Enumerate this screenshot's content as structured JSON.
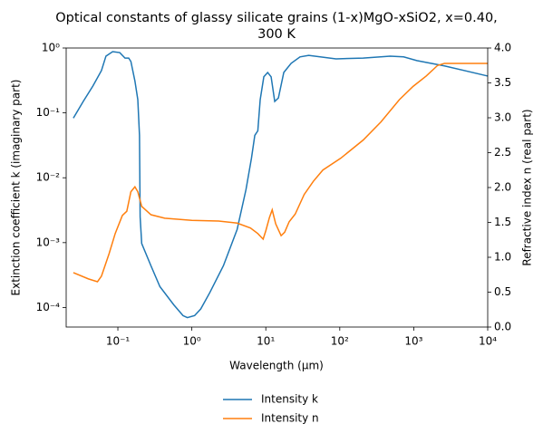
{
  "chart_data": {
    "type": "line",
    "title": [
      "Optical constants of glassy silicate grains (1-x)MgO-xSiO2, x=0.40,",
      "300 K"
    ],
    "x_label": "Wavelength (μm)",
    "y_label": "Extinction coefficient k (imaginary part)",
    "y2_label": "Refractive index n (real part)",
    "xscale": "log",
    "yscale": "log",
    "xlim": [
      0.02,
      10000
    ],
    "xticks": [
      {
        "value": 0.1,
        "label": "10⁻¹"
      },
      {
        "value": 1,
        "label": "10⁰"
      },
      {
        "value": 10,
        "label": "10¹"
      },
      {
        "value": 100,
        "label": "10²"
      },
      {
        "value": 1000,
        "label": "10³"
      },
      {
        "value": 10000,
        "label": "10⁴"
      }
    ],
    "ylim": [
      5e-05,
      1
    ],
    "yticks": [
      {
        "value": 0.0001,
        "label": "10⁻⁴"
      },
      {
        "value": 0.001,
        "label": "10⁻³"
      },
      {
        "value": 0.01,
        "label": "10⁻²"
      },
      {
        "value": 0.1,
        "label": "10⁻¹"
      },
      {
        "value": 1,
        "label": "10⁰"
      }
    ],
    "y2lim": [
      0,
      4
    ],
    "y2ticks": [
      {
        "value": 0,
        "label": "0.0"
      },
      0.5,
      {
        "value": 1,
        "label": "1.0"
      },
      1.5,
      {
        "value": 2,
        "label": "2.0"
      },
      2.5,
      {
        "value": 3,
        "label": "3.0"
      },
      3.5,
      {
        "value": 4,
        "label": "4.0"
      }
    ],
    "legend": "bottom",
    "series": [
      {
        "name": "Intensity k",
        "color": "#1f77b4",
        "x": [
          0.025,
          0.034,
          0.046,
          0.06,
          0.069,
          0.085,
          0.106,
          0.125,
          0.14,
          0.15,
          0.17,
          0.186,
          0.196,
          0.2,
          0.21,
          0.28,
          0.37,
          0.57,
          0.76,
          0.87,
          1.09,
          1.32,
          1.75,
          2.67,
          4.1,
          5.4,
          6.4,
          7.1,
          7.8,
          8.4,
          9.4,
          10.6,
          11.8,
          13.2,
          14.8,
          17.5,
          22,
          29,
          38,
          89,
          207,
          480,
          730,
          1100,
          2600,
          10000
        ],
        "values": [
          0.083,
          0.15,
          0.26,
          0.45,
          0.75,
          0.88,
          0.85,
          0.7,
          0.7,
          0.62,
          0.31,
          0.16,
          0.045,
          0.0025,
          0.00097,
          0.00044,
          0.00021,
          0.00011,
          7.5e-05,
          7e-05,
          7.5e-05,
          9.5e-05,
          0.00017,
          0.00044,
          0.0016,
          0.0066,
          0.02,
          0.045,
          0.053,
          0.16,
          0.36,
          0.42,
          0.36,
          0.15,
          0.17,
          0.42,
          0.58,
          0.73,
          0.77,
          0.68,
          0.7,
          0.75,
          0.73,
          0.64,
          0.53,
          0.37
        ]
      },
      {
        "name": "Intensity n",
        "color": "#ff7f0e",
        "axis": "y2",
        "x": [
          0.025,
          0.04,
          0.053,
          0.06,
          0.076,
          0.092,
          0.115,
          0.132,
          0.15,
          0.17,
          0.186,
          0.21,
          0.28,
          0.43,
          1.0,
          2.3,
          4.1,
          6.2,
          7.8,
          9.2,
          10.0,
          11.2,
          12.2,
          13.6,
          16.1,
          18.0,
          20.7,
          25,
          33,
          44,
          59,
          103,
          207,
          360,
          640,
          980,
          1480,
          2100,
          2600,
          10000
        ],
        "values": [
          0.78,
          0.69,
          0.65,
          0.73,
          1.05,
          1.34,
          1.6,
          1.66,
          1.94,
          2.01,
          1.94,
          1.73,
          1.61,
          1.56,
          1.53,
          1.52,
          1.49,
          1.42,
          1.34,
          1.26,
          1.38,
          1.57,
          1.68,
          1.48,
          1.31,
          1.36,
          1.51,
          1.62,
          1.9,
          2.09,
          2.25,
          2.42,
          2.68,
          2.94,
          3.26,
          3.45,
          3.6,
          3.75,
          3.78,
          3.78
        ]
      }
    ]
  }
}
